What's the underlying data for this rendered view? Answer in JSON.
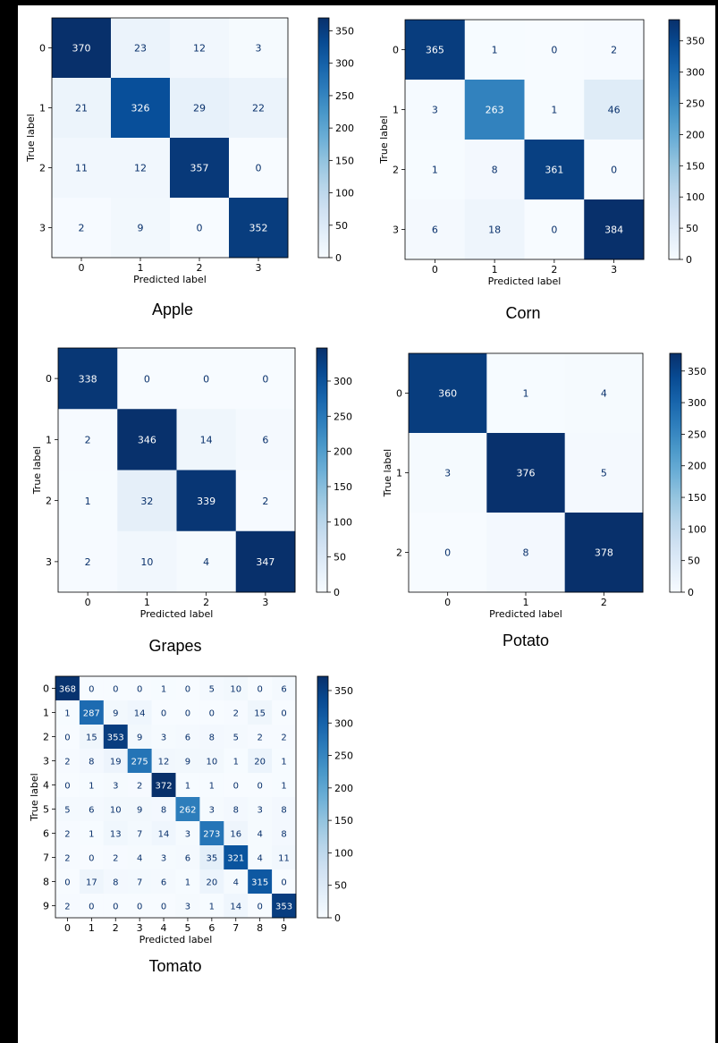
{
  "colors": {
    "low": "#f7fbff",
    "high": "#08306b",
    "text_light": "#ffffff",
    "text_dark": "#08306b"
  },
  "chart_data": [
    {
      "type": "heatmap",
      "caption": "Apple",
      "xlabel": "Predicted label",
      "ylabel": "True label",
      "x_ticks": [
        "0",
        "1",
        "2",
        "3"
      ],
      "y_ticks": [
        "0",
        "1",
        "2",
        "3"
      ],
      "matrix": [
        [
          370,
          23,
          12,
          3
        ],
        [
          21,
          326,
          29,
          22
        ],
        [
          11,
          12,
          357,
          0
        ],
        [
          2,
          9,
          0,
          352
        ]
      ],
      "colorbar": {
        "vmin": 0,
        "vmax": 370,
        "ticks": [
          0,
          50,
          100,
          150,
          200,
          250,
          300,
          350
        ]
      }
    },
    {
      "type": "heatmap",
      "caption": "Corn",
      "xlabel": "Predicted label",
      "ylabel": "True label",
      "x_ticks": [
        "0",
        "1",
        "2",
        "3"
      ],
      "y_ticks": [
        "0",
        "1",
        "2",
        "3"
      ],
      "matrix": [
        [
          365,
          1,
          0,
          2
        ],
        [
          3,
          263,
          1,
          46
        ],
        [
          1,
          8,
          361,
          0
        ],
        [
          6,
          18,
          0,
          384
        ]
      ],
      "colorbar": {
        "vmin": 0,
        "vmax": 384,
        "ticks": [
          0,
          50,
          100,
          150,
          200,
          250,
          300,
          350
        ]
      }
    },
    {
      "type": "heatmap",
      "caption": "Grapes",
      "xlabel": "Predicted label",
      "ylabel": "True label",
      "x_ticks": [
        "0",
        "1",
        "2",
        "3"
      ],
      "y_ticks": [
        "0",
        "1",
        "2",
        "3"
      ],
      "matrix": [
        [
          338,
          0,
          0,
          0
        ],
        [
          2,
          346,
          14,
          6
        ],
        [
          1,
          32,
          339,
          2
        ],
        [
          2,
          10,
          4,
          347
        ]
      ],
      "colorbar": {
        "vmin": 0,
        "vmax": 347,
        "ticks": [
          0,
          50,
          100,
          150,
          200,
          250,
          300
        ]
      }
    },
    {
      "type": "heatmap",
      "caption": "Potato",
      "xlabel": "Predicted label",
      "ylabel": "True label",
      "x_ticks": [
        "0",
        "1",
        "2"
      ],
      "y_ticks": [
        "0",
        "1",
        "2"
      ],
      "matrix": [
        [
          360,
          1,
          4
        ],
        [
          3,
          376,
          5
        ],
        [
          0,
          8,
          378
        ]
      ],
      "colorbar": {
        "vmin": 0,
        "vmax": 378,
        "ticks": [
          0,
          50,
          100,
          150,
          200,
          250,
          300,
          350
        ]
      }
    },
    {
      "type": "heatmap",
      "caption": "Tomato",
      "xlabel": "Predicted label",
      "ylabel": "True label",
      "x_ticks": [
        "0",
        "1",
        "2",
        "3",
        "4",
        "5",
        "6",
        "7",
        "8",
        "9"
      ],
      "y_ticks": [
        "0",
        "1",
        "2",
        "3",
        "4",
        "5",
        "6",
        "7",
        "8",
        "9"
      ],
      "matrix": [
        [
          368,
          0,
          0,
          0,
          1,
          0,
          5,
          10,
          0,
          6
        ],
        [
          1,
          287,
          9,
          14,
          0,
          0,
          0,
          2,
          15,
          0
        ],
        [
          0,
          15,
          353,
          9,
          3,
          6,
          8,
          5,
          2,
          2
        ],
        [
          2,
          8,
          19,
          275,
          12,
          9,
          10,
          1,
          20,
          1
        ],
        [
          0,
          1,
          3,
          2,
          372,
          1,
          1,
          0,
          0,
          1
        ],
        [
          5,
          6,
          10,
          9,
          8,
          262,
          3,
          8,
          3,
          8
        ],
        [
          2,
          1,
          13,
          7,
          14,
          3,
          273,
          16,
          4,
          8
        ],
        [
          2,
          0,
          2,
          4,
          3,
          6,
          35,
          321,
          4,
          11
        ],
        [
          0,
          17,
          8,
          7,
          6,
          1,
          20,
          4,
          315,
          0
        ],
        [
          2,
          0,
          0,
          0,
          0,
          3,
          1,
          14,
          0,
          353
        ]
      ],
      "colorbar": {
        "vmin": 0,
        "vmax": 372,
        "ticks": [
          0,
          50,
          100,
          150,
          200,
          250,
          300,
          350
        ]
      }
    }
  ]
}
